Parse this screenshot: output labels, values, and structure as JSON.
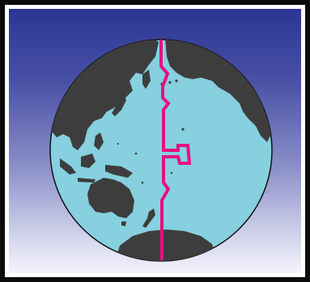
{
  "map": {
    "colors": {
      "frame": "#0b0b0b",
      "panel_border": "#ffffff",
      "sky_top": "#2b3592",
      "sky_bottom": "#f3f4fb",
      "ocean": "#86d0df",
      "land": "#3d3d3d",
      "dateline": "#e6117f"
    },
    "features": [
      "globe",
      "ocean",
      "land",
      "international-date-line"
    ]
  }
}
